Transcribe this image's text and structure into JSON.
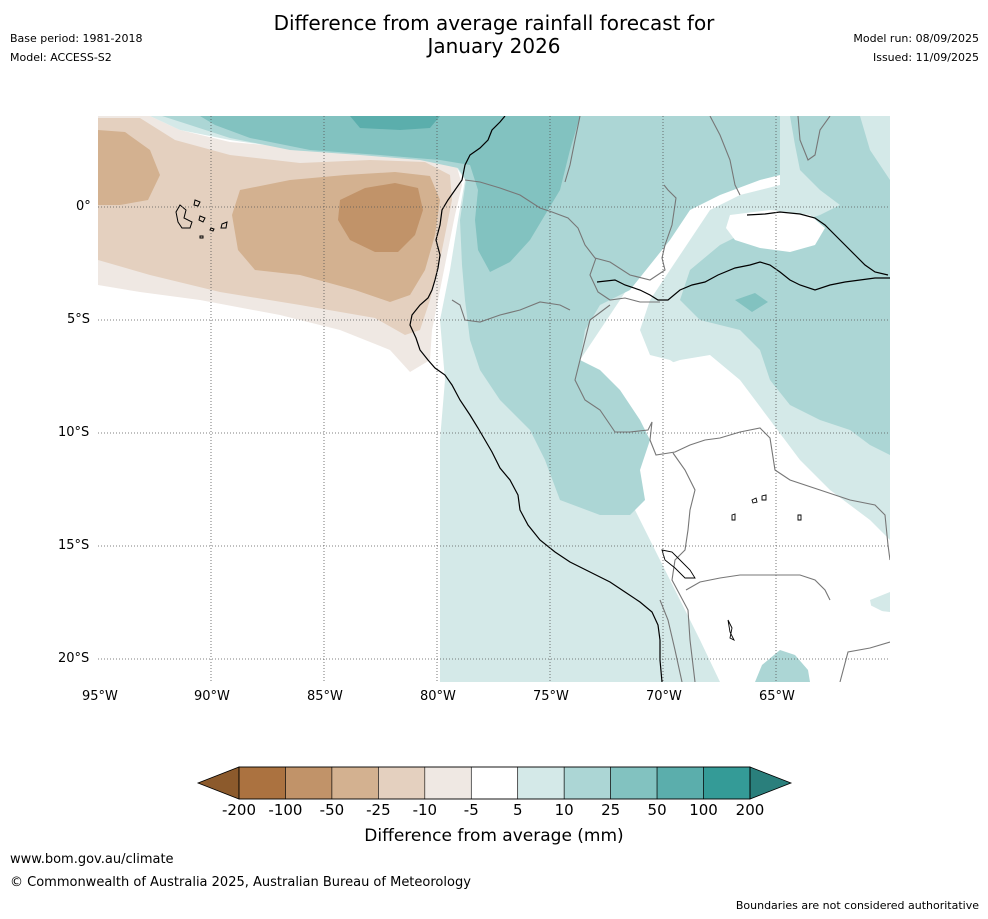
{
  "header": {
    "title_line1": "Difference from average rainfall forecast for",
    "title_line2": "January 2026",
    "base_period": "Base period: 1981-2018",
    "model": "Model: ACCESS-S2",
    "model_run": "Model run: 08/09/2025",
    "issued": "Issued: 11/09/2025"
  },
  "map": {
    "lat_labels": [
      "0°",
      "5°S",
      "10°S",
      "15°S",
      "20°S"
    ],
    "lon_labels": [
      "95°W",
      "90°W",
      "85°W",
      "80°W",
      "75°W",
      "70°W",
      "65°W"
    ],
    "colors": {
      "dry_extreme": "#8c5a2c",
      "dry_200": "#ab7240",
      "dry_100": "#c19369",
      "dry_50": "#d3b190",
      "dry_25": "#e4d0bf",
      "dry_10": "#efe8e3",
      "neutral": "#ffffff",
      "wet_5": "#d4e9e8",
      "wet_10": "#acd6d5",
      "wet_25": "#82c2c0",
      "wet_50": "#5baeac",
      "wet_100": "#349b97",
      "wet_extreme": "#2a7f7c",
      "coast": "#000000",
      "border": "#777777"
    }
  },
  "colorbar": {
    "labels": [
      "-200",
      "-100",
      "-50",
      "-25",
      "-10",
      "-5",
      "5",
      "10",
      "25",
      "50",
      "100",
      "200"
    ],
    "colors": [
      "#ab7240",
      "#c19369",
      "#d3b190",
      "#e4d0bf",
      "#efe8e3",
      "#ffffff",
      "#d4e9e8",
      "#acd6d5",
      "#82c2c0",
      "#5baeac",
      "#349b97"
    ],
    "title": "Difference from average (mm)"
  },
  "footer": {
    "url": "www.bom.gov.au/climate",
    "copyright": "© Commonwealth of Australia 2025, Australian Bureau of Meteorology",
    "disclaimer": "Boundaries are not considered authoritative"
  }
}
